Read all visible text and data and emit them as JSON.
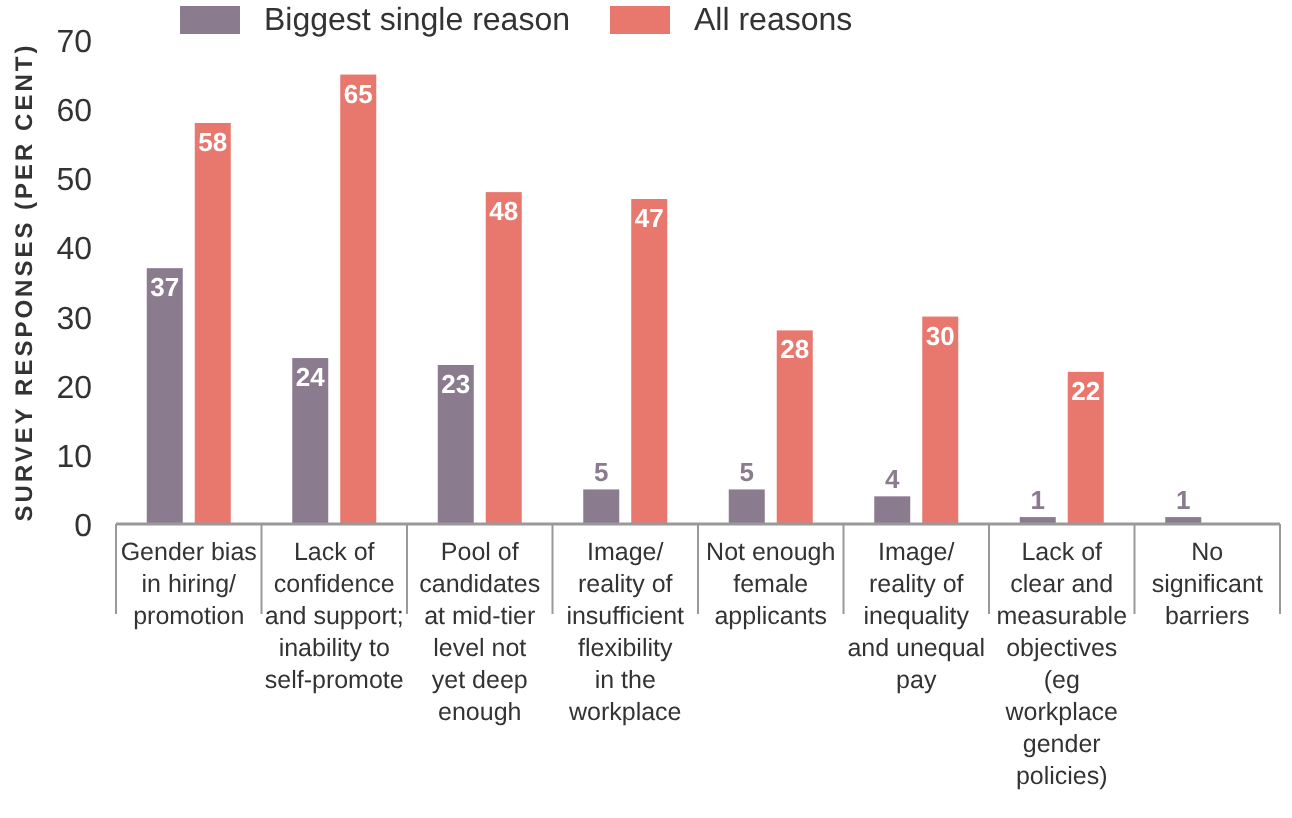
{
  "chart_data": {
    "type": "bar",
    "ylabel": "SURVEY RESPONSES (PER CENT)",
    "categories": [
      "Gender bias in hiring/ promotion",
      "Lack of confidence and support; inability to self-promote",
      "Pool of candidates at mid-tier level not yet deep enough",
      "Image/ reality of insufficient flexibility in the workplace",
      "Not enough female applicants",
      "Image/ reality of inequality and unequal pay",
      "Lack of clear and measurable objectives (eg workplace gender policies)",
      "No significant barriers"
    ],
    "series": [
      {
        "name": "Biggest single reason",
        "color": "#8b7b8f",
        "values": [
          37,
          24,
          23,
          5,
          5,
          4,
          1,
          1
        ]
      },
      {
        "name": "All reasons",
        "color": "#e8776e",
        "values": [
          58,
          65,
          48,
          47,
          28,
          30,
          22,
          null
        ]
      }
    ],
    "ylim": [
      0,
      70
    ],
    "yticks": [
      0,
      10,
      20,
      30,
      40,
      50,
      60,
      70
    ],
    "data_labels": true,
    "legend": "top left",
    "grid": false
  }
}
